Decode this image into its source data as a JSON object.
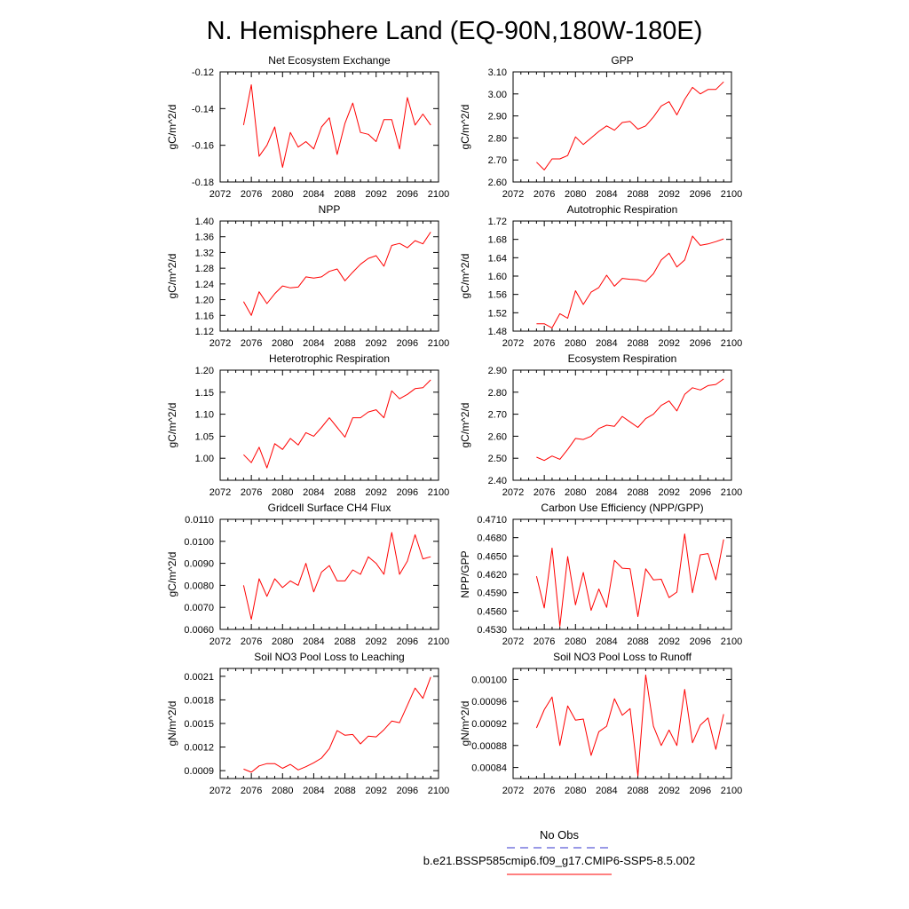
{
  "page_title": "N. Hemisphere Land (EQ-90N,180W-180E)",
  "legend": {
    "obs_label": "No Obs",
    "obs_color": "#3333cc",
    "run_label": "b.e21.BSSP585cmip6.f09_g17.CMIP6-SSP5-8.5.002",
    "run_color": "#ff0000"
  },
  "chart_data": [
    {
      "type": "line",
      "title": "Net Ecosystem Exchange",
      "ylabel": "gC/m^2/d",
      "xlim": [
        2072,
        2100
      ],
      "ylim": [
        -0.18,
        -0.12
      ],
      "xticks": [
        "2072",
        "2076",
        "2080",
        "2084",
        "2088",
        "2092",
        "2096",
        "2100"
      ],
      "yticks": [
        "-0.18",
        "-0.16",
        "-0.14",
        "-0.12"
      ],
      "x": [
        2075,
        2076,
        2077,
        2078,
        2079,
        2080,
        2081,
        2082,
        2083,
        2084,
        2085,
        2086,
        2087,
        2088,
        2089,
        2090,
        2091,
        2092,
        2093,
        2094,
        2095,
        2096,
        2097,
        2098,
        2099
      ],
      "series": [
        {
          "values": [
            -0.149,
            -0.127,
            -0.166,
            -0.16,
            -0.15,
            -0.172,
            -0.153,
            -0.161,
            -0.158,
            -0.162,
            -0.15,
            -0.145,
            -0.165,
            -0.148,
            -0.137,
            -0.153,
            -0.154,
            -0.158,
            -0.146,
            -0.146,
            -0.162,
            -0.134,
            -0.149,
            -0.143,
            -0.149
          ]
        }
      ]
    },
    {
      "type": "line",
      "title": "GPP",
      "ylabel": "gC/m^2/d",
      "xlim": [
        2072,
        2100
      ],
      "ylim": [
        2.6,
        3.1
      ],
      "xticks": [
        "2072",
        "2076",
        "2080",
        "2084",
        "2088",
        "2092",
        "2096",
        "2100"
      ],
      "yticks": [
        "2.60",
        "2.70",
        "2.80",
        "2.90",
        "3.00",
        "3.10"
      ],
      "x": [
        2075,
        2076,
        2077,
        2078,
        2079,
        2080,
        2081,
        2082,
        2083,
        2084,
        2085,
        2086,
        2087,
        2088,
        2089,
        2090,
        2091,
        2092,
        2093,
        2094,
        2095,
        2096,
        2097,
        2098,
        2099
      ],
      "series": [
        {
          "values": [
            2.69,
            2.655,
            2.705,
            2.705,
            2.72,
            2.805,
            2.77,
            2.8,
            2.83,
            2.855,
            2.835,
            2.87,
            2.875,
            2.84,
            2.855,
            2.895,
            2.945,
            2.965,
            2.905,
            2.975,
            3.03,
            3.0,
            3.02,
            3.02,
            3.055
          ]
        }
      ]
    },
    {
      "type": "line",
      "title": "NPP",
      "ylabel": "gC/m^2/d",
      "xlim": [
        2072,
        2100
      ],
      "ylim": [
        1.12,
        1.4
      ],
      "xticks": [
        "2072",
        "2076",
        "2080",
        "2084",
        "2088",
        "2092",
        "2096",
        "2100"
      ],
      "yticks": [
        "1.12",
        "1.16",
        "1.20",
        "1.24",
        "1.28",
        "1.32",
        "1.36",
        "1.40"
      ],
      "x": [
        2075,
        2076,
        2077,
        2078,
        2079,
        2080,
        2081,
        2082,
        2083,
        2084,
        2085,
        2086,
        2087,
        2088,
        2089,
        2090,
        2091,
        2092,
        2093,
        2094,
        2095,
        2096,
        2097,
        2098,
        2099
      ],
      "series": [
        {
          "values": [
            1.195,
            1.16,
            1.22,
            1.19,
            1.215,
            1.235,
            1.23,
            1.232,
            1.258,
            1.255,
            1.258,
            1.272,
            1.278,
            1.248,
            1.27,
            1.29,
            1.305,
            1.312,
            1.285,
            1.338,
            1.343,
            1.332,
            1.35,
            1.342,
            1.372
          ]
        }
      ]
    },
    {
      "type": "line",
      "title": "Autotrophic Respiration",
      "ylabel": "gC/m^2/d",
      "xlim": [
        2072,
        2100
      ],
      "ylim": [
        1.48,
        1.72
      ],
      "xticks": [
        "2072",
        "2076",
        "2080",
        "2084",
        "2088",
        "2092",
        "2096",
        "2100"
      ],
      "yticks": [
        "1.48",
        "1.52",
        "1.56",
        "1.60",
        "1.64",
        "1.68",
        "1.72"
      ],
      "x": [
        2075,
        2076,
        2077,
        2078,
        2079,
        2080,
        2081,
        2082,
        2083,
        2084,
        2085,
        2086,
        2087,
        2088,
        2089,
        2090,
        2091,
        2092,
        2093,
        2094,
        2095,
        2096,
        2097,
        2098,
        2099
      ],
      "series": [
        {
          "values": [
            1.496,
            1.496,
            1.487,
            1.518,
            1.508,
            1.568,
            1.538,
            1.565,
            1.575,
            1.602,
            1.578,
            1.595,
            1.593,
            1.592,
            1.588,
            1.605,
            1.635,
            1.65,
            1.62,
            1.635,
            1.687,
            1.667,
            1.67,
            1.675,
            1.681
          ]
        }
      ]
    },
    {
      "type": "line",
      "title": "Heterotrophic Respiration",
      "ylabel": "gC/m^2/d",
      "xlim": [
        2072,
        2100
      ],
      "ylim": [
        0.95,
        1.2
      ],
      "xticks": [
        "2072",
        "2076",
        "2080",
        "2084",
        "2088",
        "2092",
        "2096",
        "2100"
      ],
      "yticks": [
        "1.00",
        "1.05",
        "1.10",
        "1.15",
        "1.20"
      ],
      "x": [
        2075,
        2076,
        2077,
        2078,
        2079,
        2080,
        2081,
        2082,
        2083,
        2084,
        2085,
        2086,
        2087,
        2088,
        2089,
        2090,
        2091,
        2092,
        2093,
        2094,
        2095,
        2096,
        2097,
        2098,
        2099
      ],
      "series": [
        {
          "values": [
            1.008,
            0.99,
            1.025,
            0.978,
            1.033,
            1.02,
            1.045,
            1.03,
            1.058,
            1.05,
            1.07,
            1.092,
            1.07,
            1.048,
            1.092,
            1.092,
            1.105,
            1.11,
            1.092,
            1.153,
            1.135,
            1.145,
            1.158,
            1.16,
            1.178
          ]
        }
      ]
    },
    {
      "type": "line",
      "title": "Ecosystem Respiration",
      "ylabel": "gC/m^2/d",
      "xlim": [
        2072,
        2100
      ],
      "ylim": [
        2.4,
        2.9
      ],
      "xticks": [
        "2072",
        "2076",
        "2080",
        "2084",
        "2088",
        "2092",
        "2096",
        "2100"
      ],
      "yticks": [
        "2.40",
        "2.50",
        "2.60",
        "2.70",
        "2.80",
        "2.90"
      ],
      "x": [
        2075,
        2076,
        2077,
        2078,
        2079,
        2080,
        2081,
        2082,
        2083,
        2084,
        2085,
        2086,
        2087,
        2088,
        2089,
        2090,
        2091,
        2092,
        2093,
        2094,
        2095,
        2096,
        2097,
        2098,
        2099
      ],
      "series": [
        {
          "values": [
            2.505,
            2.49,
            2.51,
            2.495,
            2.54,
            2.59,
            2.585,
            2.6,
            2.635,
            2.65,
            2.645,
            2.69,
            2.665,
            2.64,
            2.68,
            2.7,
            2.74,
            2.76,
            2.715,
            2.79,
            2.82,
            2.81,
            2.83,
            2.835,
            2.86
          ]
        }
      ]
    },
    {
      "type": "line",
      "title": "Gridcell Surface CH4 Flux",
      "ylabel": "gC/m^2/d",
      "xlim": [
        2072,
        2100
      ],
      "ylim": [
        0.006,
        0.011
      ],
      "xticks": [
        "2072",
        "2076",
        "2080",
        "2084",
        "2088",
        "2092",
        "2096",
        "2100"
      ],
      "yticks": [
        "0.0060",
        "0.0070",
        "0.0080",
        "0.0090",
        "0.0100",
        "0.0110"
      ],
      "x": [
        2075,
        2076,
        2077,
        2078,
        2079,
        2080,
        2081,
        2082,
        2083,
        2084,
        2085,
        2086,
        2087,
        2088,
        2089,
        2090,
        2091,
        2092,
        2093,
        2094,
        2095,
        2096,
        2097,
        2098,
        2099
      ],
      "series": [
        {
          "values": [
            0.008,
            0.00645,
            0.0083,
            0.0075,
            0.0083,
            0.0079,
            0.0082,
            0.008,
            0.009,
            0.0077,
            0.0086,
            0.0089,
            0.0082,
            0.0082,
            0.0087,
            0.0085,
            0.0093,
            0.009,
            0.0085,
            0.0104,
            0.0085,
            0.0091,
            0.0103,
            0.0092,
            0.0093
          ]
        }
      ]
    },
    {
      "type": "line",
      "title": "Carbon Use Efficiency (NPP/GPP)",
      "ylabel": "NPP/GPP",
      "xlim": [
        2072,
        2100
      ],
      "ylim": [
        0.453,
        0.471
      ],
      "xticks": [
        "2072",
        "2076",
        "2080",
        "2084",
        "2088",
        "2092",
        "2096",
        "2100"
      ],
      "yticks": [
        "0.4530",
        "0.4560",
        "0.4590",
        "0.4620",
        "0.4650",
        "0.4680",
        "0.4710"
      ],
      "x": [
        2075,
        2076,
        2077,
        2078,
        2079,
        2080,
        2081,
        2082,
        2083,
        2084,
        2085,
        2086,
        2087,
        2088,
        2089,
        2090,
        2091,
        2092,
        2093,
        2094,
        2095,
        2096,
        2097,
        2098,
        2099
      ],
      "series": [
        {
          "values": [
            0.4617,
            0.4565,
            0.4663,
            0.4535,
            0.4649,
            0.457,
            0.4623,
            0.4561,
            0.4596,
            0.4566,
            0.4643,
            0.463,
            0.4629,
            0.4551,
            0.4629,
            0.4611,
            0.4612,
            0.4582,
            0.4591,
            0.4686,
            0.459,
            0.4652,
            0.4654,
            0.4611,
            0.4677
          ]
        }
      ]
    },
    {
      "type": "line",
      "title": "Soil NO3 Pool Loss to Leaching",
      "ylabel": "gN/m^2/d",
      "xlim": [
        2072,
        2100
      ],
      "ylim": [
        0.0008,
        0.0022
      ],
      "xticks": [
        "2072",
        "2076",
        "2080",
        "2084",
        "2088",
        "2092",
        "2096",
        "2100"
      ],
      "yticks": [
        "0.0009",
        "0.0012",
        "0.0015",
        "0.0018",
        "0.0021"
      ],
      "x": [
        2075,
        2076,
        2077,
        2078,
        2079,
        2080,
        2081,
        2082,
        2083,
        2084,
        2085,
        2086,
        2087,
        2088,
        2089,
        2090,
        2091,
        2092,
        2093,
        2094,
        2095,
        2096,
        2097,
        2098,
        2099
      ],
      "series": [
        {
          "values": [
            0.00092,
            0.00088,
            0.00096,
            0.00099,
            0.00099,
            0.00093,
            0.00098,
            0.00091,
            0.00095,
            0.001,
            0.00106,
            0.00118,
            0.00141,
            0.00135,
            0.00136,
            0.00124,
            0.00134,
            0.00133,
            0.00142,
            0.00153,
            0.00151,
            0.00173,
            0.00195,
            0.00182,
            0.00209
          ]
        }
      ]
    },
    {
      "type": "line",
      "title": "Soil NO3 Pool Loss to Runoff",
      "ylabel": "gN/m^2/d",
      "xlim": [
        2072,
        2100
      ],
      "ylim": [
        0.00082,
        0.00102
      ],
      "xticks": [
        "2072",
        "2076",
        "2080",
        "2084",
        "2088",
        "2092",
        "2096",
        "2100"
      ],
      "yticks": [
        "0.00084",
        "0.00088",
        "0.00092",
        "0.00096",
        "0.00100"
      ],
      "x": [
        2075,
        2076,
        2077,
        2078,
        2079,
        2080,
        2081,
        2082,
        2083,
        2084,
        2085,
        2086,
        2087,
        2088,
        2089,
        2090,
        2091,
        2092,
        2093,
        2094,
        2095,
        2096,
        2097,
        2098,
        2099
      ],
      "series": [
        {
          "values": [
            0.000912,
            0.000945,
            0.000968,
            0.00088,
            0.000952,
            0.000926,
            0.000928,
            0.000862,
            0.000905,
            0.000915,
            0.000965,
            0.000935,
            0.000947,
            0.000825,
            0.001008,
            0.000915,
            0.00088,
            0.000908,
            0.00088,
            0.000982,
            0.000885,
            0.000917,
            0.00093,
            0.000873,
            0.000937
          ]
        }
      ]
    }
  ]
}
